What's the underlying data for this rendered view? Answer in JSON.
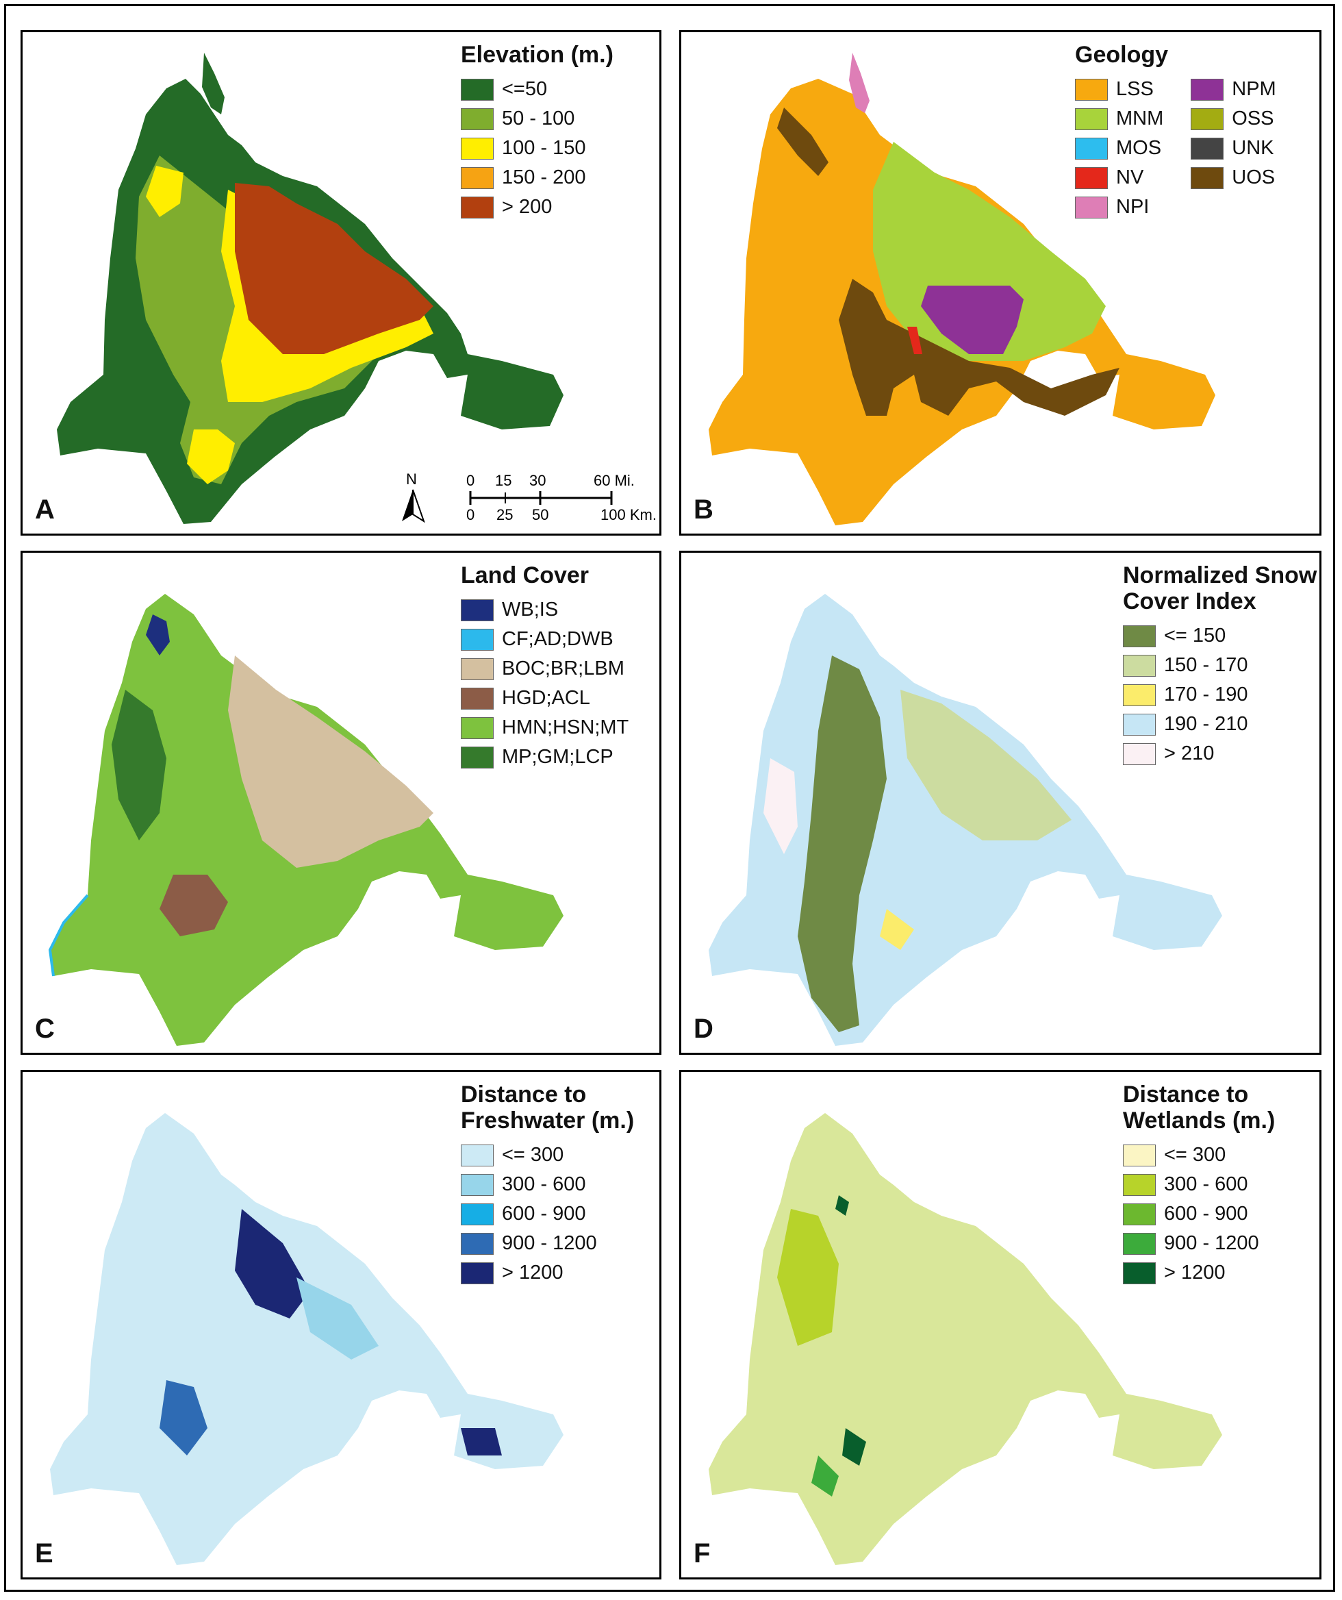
{
  "panels": [
    {
      "letter": "A",
      "legend_title": [
        "Elevation (m.)"
      ],
      "legend": [
        {
          "label": "<=50",
          "color": "#246b27"
        },
        {
          "label": "50 - 100",
          "color": "#7fad2e"
        },
        {
          "label": "100 - 150",
          "color": "#ffee00"
        },
        {
          "label": "150 - 200",
          "color": "#f6a313"
        },
        {
          "label": "> 200",
          "color": "#b2400f"
        }
      ],
      "scale": {
        "north": "N",
        "mi_ticks": [
          "0",
          "15",
          "30",
          "60 Mi."
        ],
        "km_ticks": [
          "0",
          "25",
          "50",
          "100 Km."
        ]
      }
    },
    {
      "letter": "B",
      "legend_title": [
        "Geology"
      ],
      "legend_col1": [
        {
          "label": "LSS",
          "color": "#f7a90f"
        },
        {
          "label": "MNM",
          "color": "#a8d33b"
        },
        {
          "label": "MOS",
          "color": "#2dbdee"
        },
        {
          "label": "NV",
          "color": "#e4281b"
        },
        {
          "label": "NPI",
          "color": "#de7eb6"
        }
      ],
      "legend_col2": [
        {
          "label": "NPM",
          "color": "#8e3296"
        },
        {
          "label": "OSS",
          "color": "#a3ac12"
        },
        {
          "label": "UNK",
          "color": "#444444"
        },
        {
          "label": "UOS",
          "color": "#6e4a0e"
        }
      ]
    },
    {
      "letter": "C",
      "legend_title": [
        "Land Cover"
      ],
      "legend": [
        {
          "label": "WB;IS",
          "color": "#1d2f7e"
        },
        {
          "label": "CF;AD;DWB",
          "color": "#2cb9ec"
        },
        {
          "label": "BOC;BR;LBM",
          "color": "#d4c0a0"
        },
        {
          "label": "HGD;ACL",
          "color": "#8c5c47"
        },
        {
          "label": "HMN;HSN;MT",
          "color": "#7ec23e"
        },
        {
          "label": "MP;GM;LCP",
          "color": "#357a2c"
        }
      ]
    },
    {
      "letter": "D",
      "legend_title": [
        "Normalized Snow",
        "Cover Index"
      ],
      "legend": [
        {
          "label": "<= 150",
          "color": "#6f8a45"
        },
        {
          "label": "150 - 170",
          "color": "#ccdca0"
        },
        {
          "label": "170 - 190",
          "color": "#fbec6b"
        },
        {
          "label": "190 - 210",
          "color": "#c6e6f5"
        },
        {
          "label": "> 210",
          "color": "#fbf1f4"
        }
      ]
    },
    {
      "letter": "E",
      "legend_title": [
        "Distance to",
        "Freshwater (m.)"
      ],
      "legend": [
        {
          "label": "<= 300",
          "color": "#cdeaf5"
        },
        {
          "label": "300 - 600",
          "color": "#97d5ea"
        },
        {
          "label": "600 - 900",
          "color": "#16aee5"
        },
        {
          "label": "900 - 1200",
          "color": "#2e6bb4"
        },
        {
          "label": "> 1200",
          "color": "#1b2774"
        }
      ]
    },
    {
      "letter": "F",
      "legend_title": [
        "Distance to",
        "Wetlands (m.)"
      ],
      "legend": [
        {
          "label": "<= 300",
          "color": "#fbf5c4"
        },
        {
          "label": "300 - 600",
          "color": "#b7d32a"
        },
        {
          "label": "600 - 900",
          "color": "#6cb82f"
        },
        {
          "label": "900 - 1200",
          "color": "#3cab3b"
        },
        {
          "label": "> 1200",
          "color": "#085e2c"
        }
      ]
    }
  ]
}
